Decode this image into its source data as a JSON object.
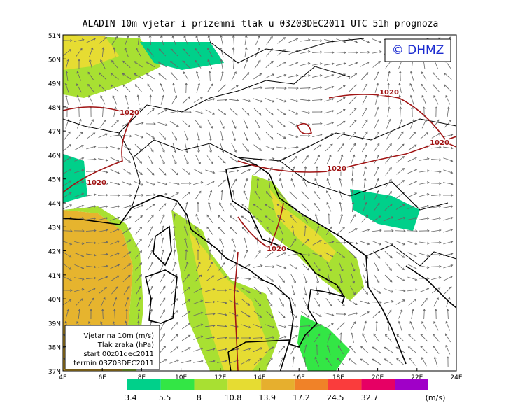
{
  "title": "ALADIN 10m vjetar i prizemni tlak u 03Z03DEC2011 UTC 51h prognoza",
  "logo": "© DHMZ",
  "lat_labels": [
    "51N",
    "50N",
    "49N",
    "48N",
    "47N",
    "46N",
    "45N",
    "44N",
    "43N",
    "42N",
    "41N",
    "40N",
    "39N",
    "38N",
    "37N"
  ],
  "lon_labels": [
    "4E",
    "6E",
    "8E",
    "10E",
    "12E",
    "14E",
    "16E",
    "18E",
    "20E",
    "22E",
    "24E"
  ],
  "isobar_labels": [
    "1020",
    "1020",
    "1020",
    "1020",
    "1020",
    "1020"
  ],
  "info_box": [
    "Vjetar na 10m (m/s)",
    "Tlak zraka (hPa)",
    "start 00z01dec2011",
    "termin 03Z03DEC2011"
  ],
  "colorbar": {
    "labels": [
      "3.4",
      "5.5",
      "8",
      "10.8",
      "13.9",
      "17.2",
      "24.5",
      "32.7"
    ],
    "colors": [
      "#00d08a",
      "#33e645",
      "#a8e032",
      "#e6dc32",
      "#e6af2e",
      "#f08228",
      "#fa3c3c",
      "#e60064",
      "#a000c8"
    ],
    "units": "(m/s)"
  }
}
